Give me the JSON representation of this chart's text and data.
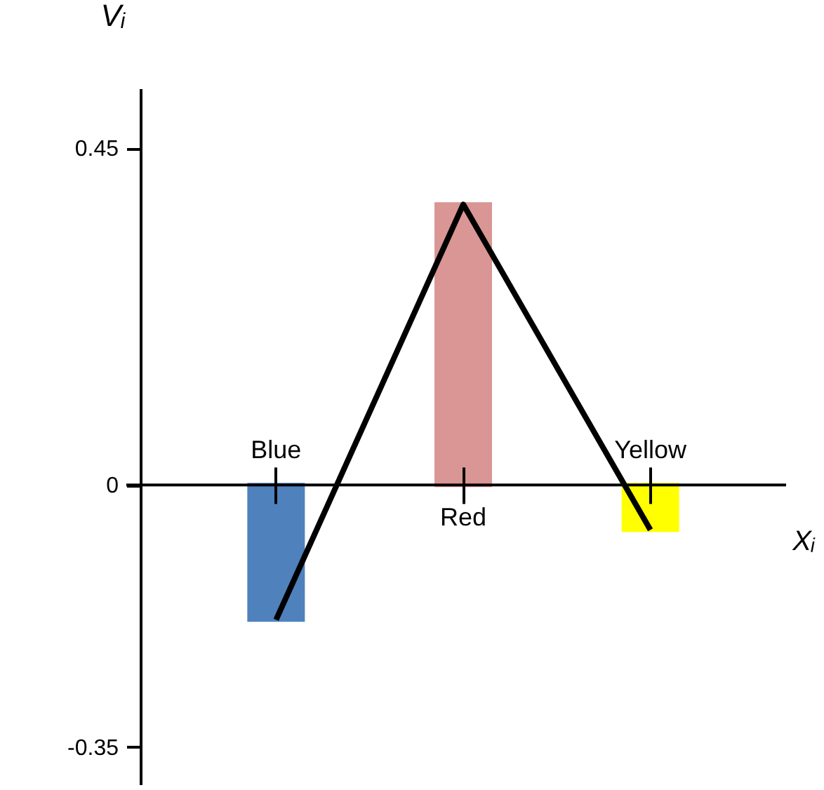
{
  "chart_data": {
    "type": "bar",
    "xlabel": "Xᵢ",
    "ylabel": "Vᵢ",
    "categories": [
      "Blue",
      "Red",
      "Yellow"
    ],
    "series": [
      {
        "colors": [
          "#4f81bd",
          "#d99694",
          "#ffff00"
        ],
        "values": [
          -0.18,
          0.375,
          -0.06
        ]
      },
      {
        "type": "line",
        "color": "#000000",
        "values": [
          -0.18,
          0.375,
          -0.06
        ]
      }
    ],
    "ylim": [
      -0.4,
      0.53
    ],
    "yticks": [
      -0.35,
      0,
      0.45
    ]
  }
}
